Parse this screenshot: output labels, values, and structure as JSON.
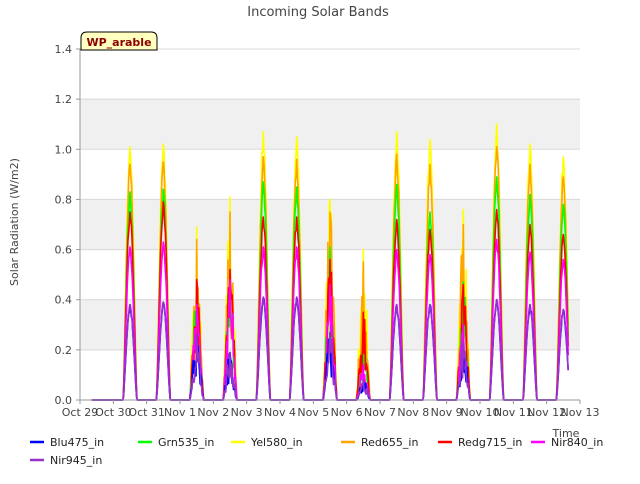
{
  "chart_data": {
    "type": "line",
    "title": "Incoming Solar Bands",
    "xlabel": "Time",
    "ylabel": "Solar Radiation (W/m2)",
    "ylim": [
      0,
      1.4
    ],
    "xlim": [
      "2023-10-29",
      "2023-11-13"
    ],
    "yticks": [
      "0.0",
      "0.2",
      "0.4",
      "0.6",
      "0.8",
      "1.0",
      "1.2",
      "1.4"
    ],
    "xticks": [
      "Oct 29",
      "Oct 30",
      "Oct 31",
      "Nov 1",
      "Nov 2",
      "Nov 3",
      "Nov 4",
      "Nov 5",
      "Nov 6",
      "Nov 7",
      "Nov 8",
      "Nov 9",
      "Nov 10",
      "Nov 11",
      "Nov 12",
      "Nov 13"
    ],
    "grid": true,
    "legend_position": "bottom",
    "site_badge": "WP_arable",
    "days": [
      "2023-10-29",
      "2023-10-30",
      "2023-10-31",
      "2023-11-01",
      "2023-11-02",
      "2023-11-03",
      "2023-11-04",
      "2023-11-05",
      "2023-11-06",
      "2023-11-07",
      "2023-11-08",
      "2023-11-09",
      "2023-11-10",
      "2023-11-11",
      "2023-11-12"
    ],
    "series": [
      {
        "name": "Blu475_in",
        "color": "#0000ff",
        "daily_peak": [
          0,
          0.38,
          0.39,
          0.26,
          0.19,
          0.41,
          0.41,
          0.27,
          0.08,
          0.38,
          0.38,
          0.23,
          0.4,
          0.38,
          0.36
        ]
      },
      {
        "name": "Grn535_in",
        "color": "#00ff00",
        "daily_peak": [
          0,
          0.83,
          0.84,
          0.48,
          0.52,
          0.87,
          0.85,
          0.61,
          0.2,
          0.86,
          0.75,
          0.47,
          0.89,
          0.82,
          0.78
        ]
      },
      {
        "name": "Yel580_in",
        "color": "#ffff00",
        "daily_peak": [
          0,
          1.01,
          1.02,
          0.69,
          0.81,
          1.07,
          1.05,
          0.8,
          0.6,
          1.07,
          1.04,
          0.76,
          1.1,
          1.02,
          0.97
        ]
      },
      {
        "name": "Red655_in",
        "color": "#ffa500",
        "daily_peak": [
          0,
          0.94,
          0.95,
          0.64,
          0.75,
          0.97,
          0.96,
          0.75,
          0.55,
          0.98,
          0.94,
          0.7,
          1.01,
          0.94,
          0.89
        ]
      },
      {
        "name": "Redg715_in",
        "color": "#ff0000",
        "daily_peak": [
          0,
          0.75,
          0.79,
          0.48,
          0.52,
          0.73,
          0.73,
          0.56,
          0.35,
          0.72,
          0.68,
          0.46,
          0.76,
          0.7,
          0.66
        ]
      },
      {
        "name": "Nir840_in",
        "color": "#ff00ff",
        "daily_peak": [
          0,
          0.61,
          0.63,
          0.38,
          0.48,
          0.61,
          0.61,
          0.46,
          0.14,
          0.6,
          0.58,
          0.3,
          0.64,
          0.59,
          0.56
        ]
      },
      {
        "name": "Nir945_in",
        "color": "#9932cc",
        "daily_peak": [
          0,
          0.38,
          0.39,
          0.26,
          0.19,
          0.41,
          0.41,
          0.27,
          0.08,
          0.38,
          0.38,
          0.23,
          0.4,
          0.38,
          0.36
        ]
      }
    ]
  }
}
